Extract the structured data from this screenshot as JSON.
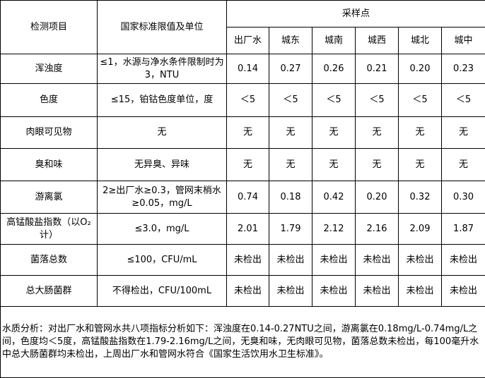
{
  "headers": {
    "item": "检测项目",
    "standard": "国家标准限值及单位",
    "sampling": "采样点",
    "sites": [
      "出厂水",
      "城东",
      "城南",
      "城西",
      "城北",
      "城中"
    ]
  },
  "rows": [
    {
      "item": "浑浊度",
      "standard": "≤1，水源与净水条件限制时为3，NTU",
      "values": [
        "0.14",
        "0.27",
        "0.26",
        "0.21",
        "0.20",
        "0.23"
      ]
    },
    {
      "item": "色度",
      "standard": "≤15，铂钴色度单位，度",
      "values": [
        "＜5",
        "＜5",
        "＜5",
        "＜5",
        "＜5",
        "＜5"
      ]
    },
    {
      "item": "肉眼可见物",
      "standard": "无",
      "values": [
        "无",
        "无",
        "无",
        "无",
        "无",
        "无"
      ]
    },
    {
      "item": "臭和味",
      "standard": "无异臭、异味",
      "values": [
        "无",
        "无",
        "无",
        "无",
        "无",
        "无"
      ]
    },
    {
      "item": "游离氯",
      "standard": "2≥出厂水≥0.3，管网末梢水≥0.05，mg/L",
      "values": [
        "0.74",
        "0.18",
        "0.42",
        "0.20",
        "0.32",
        "0.30"
      ]
    },
    {
      "item": "高锰酸盐指数（以O₂计）",
      "standard": "≤3.0，mg/L",
      "values": [
        "2.01",
        "1.79",
        "2.12",
        "2.16",
        "2.09",
        "1.87"
      ]
    },
    {
      "item": "菌落总数",
      "standard": "≤100，CFU/mL",
      "values": [
        "未检出",
        "未检出",
        "未检出",
        "未检出",
        "未检出",
        "未检出"
      ]
    },
    {
      "item": "总大肠菌群",
      "standard": "不得检出，CFU/100mL",
      "values": [
        "未检出",
        "未检出",
        "未检出",
        "未检出",
        "未检出",
        "未检出"
      ]
    }
  ],
  "analysis": "水质分析：对出厂水和管网水共八项指标分析如下：浑浊度在0.14-0.27NTU之间，游离氯在0.18mg/L-0.74mg/L之间，色度均＜5度，高锰酸盐指数在1.79-2.16mg/L之间，无臭和味，无肉眼可见物，菌落总数未检出，每100毫升水中总大肠菌群均未检出，上周出厂水和管网水符合《国家生活饮用水卫生标准》。"
}
